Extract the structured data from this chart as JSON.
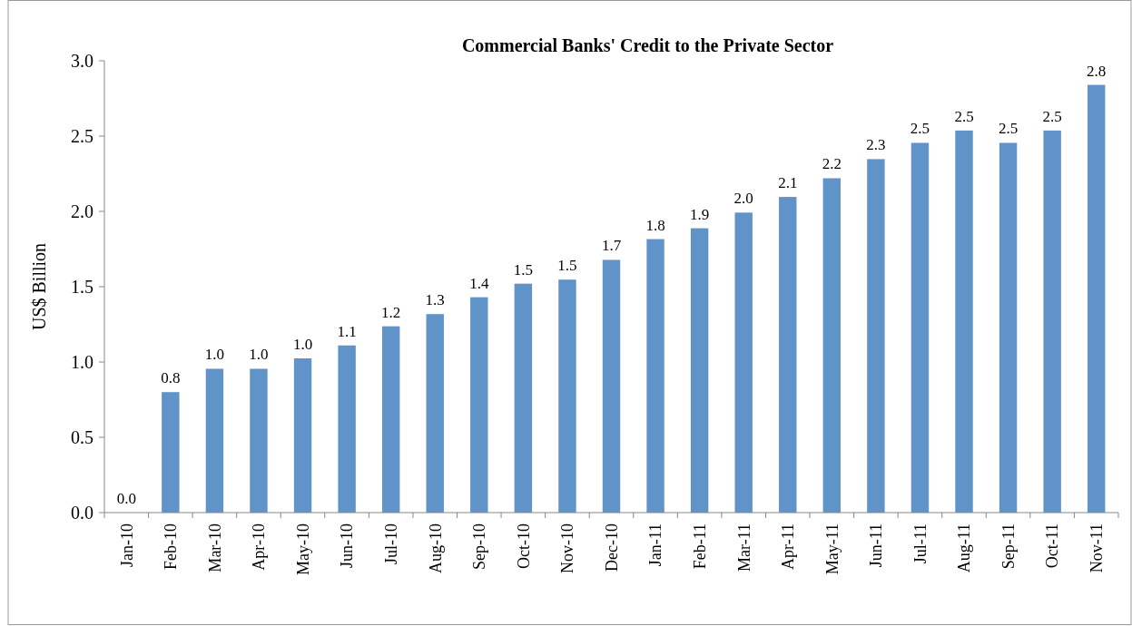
{
  "chart_data": {
    "type": "bar",
    "title": "Commercial Banks' Credit to the Private Sector",
    "ylabel": "US$ Billion",
    "categories": [
      "Jan-10",
      "Feb-10",
      "Mar-10",
      "Apr-10",
      "May-10",
      "Jun-10",
      "Jul-10",
      "Aug-10",
      "Sep-10",
      "Oct-10",
      "Nov-10",
      "Dec-10",
      "Jan-11",
      "Feb-11",
      "Mar-11",
      "Apr-11",
      "May-11",
      "Jun-11",
      "Jul-11",
      "Aug-11",
      "Sep-11",
      "Oct-11",
      "Nov-11"
    ],
    "values": [
      0,
      0.8,
      0.955,
      0.955,
      1.024,
      1.11,
      1.237,
      1.318,
      1.43,
      1.52,
      1.547,
      1.678,
      1.816,
      1.888,
      1.992,
      2.096,
      2.22,
      2.347,
      2.455,
      2.537,
      2.455,
      2.537,
      2.84
    ],
    "value_labels": [
      "0.0",
      "0.8",
      "1.0",
      "1.0",
      "1.0",
      "1.1",
      "1.2",
      "1.3",
      "1.4",
      "1.5",
      "1.5",
      "1.7",
      "1.8",
      "1.9",
      "2.0",
      "2.1",
      "2.2",
      "2.3",
      "2.5",
      "2.5",
      "2.5",
      "2.5",
      "2.8"
    ],
    "color": "#6094c9",
    "ylim": [
      0,
      3
    ],
    "yticks": [
      "0.0",
      "0.5",
      "1.0",
      "1.5",
      "2.0",
      "2.5",
      "3.0"
    ],
    "grid": false
  }
}
